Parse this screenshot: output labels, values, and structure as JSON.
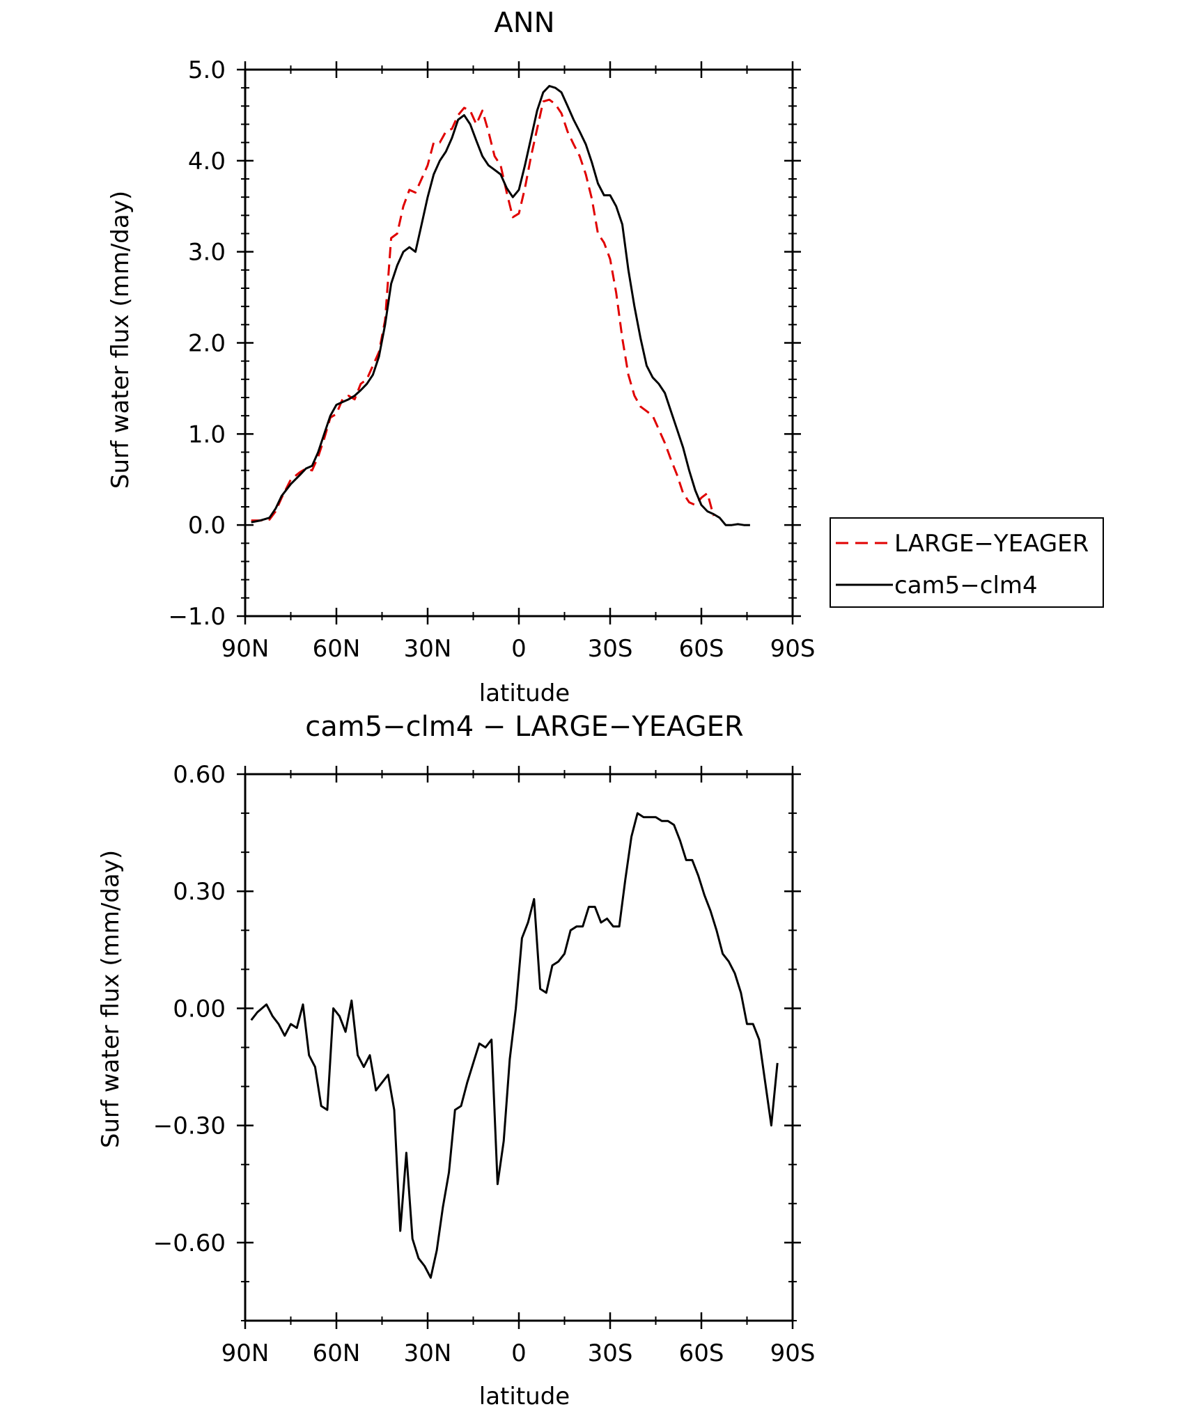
{
  "chart_data": [
    {
      "type": "line",
      "title": "ANN",
      "xlabel": "latitude",
      "ylabel": "Surf water flux (mm/day)",
      "xlim": [
        90,
        -90
      ],
      "ylim": [
        -1.0,
        5.0
      ],
      "x_ticks": [
        90,
        60,
        30,
        0,
        -30,
        -60,
        -90
      ],
      "x_tick_labels": [
        "90N",
        "60N",
        "30N",
        "0",
        "30S",
        "60S",
        "90S"
      ],
      "y_ticks": [
        -1.0,
        0.0,
        1.0,
        2.0,
        3.0,
        4.0,
        5.0
      ],
      "y_tick_labels": [
        "−1.0",
        "0.0",
        "1.0",
        "2.0",
        "3.0",
        "4.0",
        "5.0"
      ],
      "legend_position": "right",
      "series": [
        {
          "name": "LARGE−YEAGER",
          "color": "#e00000",
          "dash": "dashed",
          "points": [
            [
              88,
              0.05
            ],
            [
              85,
              0.05
            ],
            [
              82,
              0.06
            ],
            [
              80,
              0.15
            ],
            [
              78,
              0.3
            ],
            [
              75,
              0.5
            ],
            [
              72,
              0.58
            ],
            [
              70,
              0.62
            ],
            [
              68,
              0.6
            ],
            [
              66,
              0.75
            ],
            [
              64,
              0.95
            ],
            [
              62,
              1.18
            ],
            [
              60,
              1.22
            ],
            [
              58,
              1.38
            ],
            [
              56,
              1.42
            ],
            [
              54,
              1.38
            ],
            [
              52,
              1.55
            ],
            [
              50,
              1.6
            ],
            [
              48,
              1.75
            ],
            [
              46,
              1.9
            ],
            [
              44,
              2.25
            ],
            [
              42,
              3.15
            ],
            [
              40,
              3.2
            ],
            [
              38,
              3.5
            ],
            [
              36,
              3.68
            ],
            [
              34,
              3.65
            ],
            [
              32,
              3.8
            ],
            [
              30,
              3.95
            ],
            [
              28,
              4.2
            ],
            [
              26,
              4.2
            ],
            [
              24,
              4.32
            ],
            [
              22,
              4.35
            ],
            [
              20,
              4.5
            ],
            [
              18,
              4.58
            ],
            [
              16,
              4.55
            ],
            [
              14,
              4.4
            ],
            [
              12,
              4.55
            ],
            [
              10,
              4.32
            ],
            [
              8,
              4.05
            ],
            [
              6,
              3.95
            ],
            [
              4,
              3.65
            ],
            [
              2,
              3.38
            ],
            [
              0,
              3.42
            ],
            [
              -2,
              3.7
            ],
            [
              -4,
              4.05
            ],
            [
              -6,
              4.35
            ],
            [
              -8,
              4.65
            ],
            [
              -10,
              4.67
            ],
            [
              -12,
              4.62
            ],
            [
              -14,
              4.52
            ],
            [
              -16,
              4.32
            ],
            [
              -18,
              4.18
            ],
            [
              -20,
              4.05
            ],
            [
              -22,
              3.85
            ],
            [
              -24,
              3.58
            ],
            [
              -26,
              3.2
            ],
            [
              -28,
              3.1
            ],
            [
              -30,
              2.92
            ],
            [
              -32,
              2.55
            ],
            [
              -34,
              2.05
            ],
            [
              -36,
              1.65
            ],
            [
              -38,
              1.42
            ],
            [
              -40,
              1.3
            ],
            [
              -42,
              1.25
            ],
            [
              -44,
              1.2
            ],
            [
              -46,
              1.05
            ],
            [
              -48,
              0.9
            ],
            [
              -50,
              0.72
            ],
            [
              -52,
              0.55
            ],
            [
              -54,
              0.35
            ],
            [
              -56,
              0.25
            ],
            [
              -58,
              0.22
            ],
            [
              -60,
              0.3
            ],
            [
              -62,
              0.35
            ],
            [
              -64,
              0.1
            ]
          ]
        },
        {
          "name": "cam5−clm4",
          "color": "#000000",
          "dash": "solid",
          "points": [
            [
              88,
              0.03
            ],
            [
              85,
              0.05
            ],
            [
              82,
              0.08
            ],
            [
              80,
              0.18
            ],
            [
              78,
              0.32
            ],
            [
              75,
              0.45
            ],
            [
              72,
              0.55
            ],
            [
              70,
              0.62
            ],
            [
              68,
              0.65
            ],
            [
              66,
              0.8
            ],
            [
              64,
              1.0
            ],
            [
              62,
              1.2
            ],
            [
              60,
              1.32
            ],
            [
              58,
              1.35
            ],
            [
              56,
              1.38
            ],
            [
              54,
              1.42
            ],
            [
              52,
              1.48
            ],
            [
              50,
              1.55
            ],
            [
              48,
              1.65
            ],
            [
              46,
              1.85
            ],
            [
              44,
              2.2
            ],
            [
              42,
              2.65
            ],
            [
              40,
              2.85
            ],
            [
              38,
              3.0
            ],
            [
              36,
              3.05
            ],
            [
              34,
              3.0
            ],
            [
              32,
              3.3
            ],
            [
              30,
              3.6
            ],
            [
              28,
              3.85
            ],
            [
              26,
              4.0
            ],
            [
              24,
              4.1
            ],
            [
              22,
              4.25
            ],
            [
              20,
              4.45
            ],
            [
              18,
              4.5
            ],
            [
              16,
              4.4
            ],
            [
              14,
              4.22
            ],
            [
              12,
              4.05
            ],
            [
              10,
              3.95
            ],
            [
              8,
              3.9
            ],
            [
              6,
              3.85
            ],
            [
              4,
              3.7
            ],
            [
              2,
              3.6
            ],
            [
              0,
              3.68
            ],
            [
              -2,
              3.95
            ],
            [
              -4,
              4.25
            ],
            [
              -6,
              4.55
            ],
            [
              -8,
              4.75
            ],
            [
              -10,
              4.82
            ],
            [
              -12,
              4.8
            ],
            [
              -14,
              4.75
            ],
            [
              -16,
              4.6
            ],
            [
              -18,
              4.45
            ],
            [
              -20,
              4.32
            ],
            [
              -22,
              4.18
            ],
            [
              -24,
              3.98
            ],
            [
              -26,
              3.75
            ],
            [
              -28,
              3.62
            ],
            [
              -30,
              3.62
            ],
            [
              -32,
              3.5
            ],
            [
              -34,
              3.3
            ],
            [
              -36,
              2.8
            ],
            [
              -38,
              2.4
            ],
            [
              -40,
              2.05
            ],
            [
              -42,
              1.75
            ],
            [
              -44,
              1.62
            ],
            [
              -46,
              1.55
            ],
            [
              -48,
              1.45
            ],
            [
              -50,
              1.25
            ],
            [
              -52,
              1.05
            ],
            [
              -54,
              0.85
            ],
            [
              -56,
              0.6
            ],
            [
              -58,
              0.38
            ],
            [
              -60,
              0.22
            ],
            [
              -62,
              0.15
            ],
            [
              -64,
              0.12
            ],
            [
              -66,
              0.08
            ],
            [
              -68,
              0.0
            ],
            [
              -70,
              0.0
            ],
            [
              -72,
              0.01
            ],
            [
              -74,
              0.0
            ],
            [
              -76,
              0.0
            ]
          ]
        }
      ]
    },
    {
      "type": "line",
      "title": "cam5−clm4 − LARGE−YEAGER",
      "xlabel": "latitude",
      "ylabel": "Surf water flux (mm/day)",
      "xlim": [
        90,
        -90
      ],
      "ylim": [
        -0.8,
        0.6
      ],
      "x_ticks": [
        90,
        60,
        30,
        0,
        -30,
        -60,
        -90
      ],
      "x_tick_labels": [
        "90N",
        "60N",
        "30N",
        "0",
        "30S",
        "60S",
        "90S"
      ],
      "y_ticks": [
        -0.6,
        -0.3,
        0.0,
        0.3,
        0.6
      ],
      "y_tick_labels": [
        "−0.60",
        "−0.30",
        "0.00",
        "0.30",
        "0.60"
      ],
      "series": [
        {
          "color": "#000000",
          "dash": "solid",
          "points": [
            [
              88,
              -0.03
            ],
            [
              86,
              -0.01
            ],
            [
              83,
              0.01
            ],
            [
              81,
              -0.02
            ],
            [
              79,
              -0.04
            ],
            [
              77,
              -0.07
            ],
            [
              75,
              -0.04
            ],
            [
              73,
              -0.05
            ],
            [
              71,
              0.01
            ],
            [
              69,
              -0.12
            ],
            [
              67,
              -0.15
            ],
            [
              65,
              -0.25
            ],
            [
              63,
              -0.26
            ],
            [
              61,
              0.0
            ],
            [
              59,
              -0.02
            ],
            [
              57,
              -0.06
            ],
            [
              55,
              0.02
            ],
            [
              53,
              -0.12
            ],
            [
              51,
              -0.15
            ],
            [
              49,
              -0.12
            ],
            [
              47,
              -0.21
            ],
            [
              45,
              -0.19
            ],
            [
              43,
              -0.17
            ],
            [
              41,
              -0.26
            ],
            [
              39,
              -0.57
            ],
            [
              37,
              -0.37
            ],
            [
              35,
              -0.59
            ],
            [
              33,
              -0.64
            ],
            [
              31,
              -0.66
            ],
            [
              29,
              -0.69
            ],
            [
              27,
              -0.62
            ],
            [
              25,
              -0.51
            ],
            [
              23,
              -0.42
            ],
            [
              21,
              -0.26
            ],
            [
              19,
              -0.25
            ],
            [
              17,
              -0.19
            ],
            [
              15,
              -0.14
            ],
            [
              13,
              -0.09
            ],
            [
              11,
              -0.1
            ],
            [
              9,
              -0.08
            ],
            [
              7,
              -0.45
            ],
            [
              5,
              -0.34
            ],
            [
              3,
              -0.13
            ],
            [
              1,
              0.0
            ],
            [
              -1,
              0.18
            ],
            [
              -3,
              0.22
            ],
            [
              -5,
              0.28
            ],
            [
              -7,
              0.05
            ],
            [
              -9,
              0.04
            ],
            [
              -11,
              0.11
            ],
            [
              -13,
              0.12
            ],
            [
              -15,
              0.14
            ],
            [
              -17,
              0.2
            ],
            [
              -19,
              0.21
            ],
            [
              -21,
              0.21
            ],
            [
              -23,
              0.26
            ],
            [
              -25,
              0.26
            ],
            [
              -27,
              0.22
            ],
            [
              -29,
              0.23
            ],
            [
              -31,
              0.21
            ],
            [
              -33,
              0.21
            ],
            [
              -35,
              0.33
            ],
            [
              -37,
              0.44
            ],
            [
              -39,
              0.5
            ],
            [
              -41,
              0.49
            ],
            [
              -43,
              0.49
            ],
            [
              -45,
              0.49
            ],
            [
              -47,
              0.48
            ],
            [
              -49,
              0.48
            ],
            [
              -51,
              0.47
            ],
            [
              -53,
              0.43
            ],
            [
              -55,
              0.38
            ],
            [
              -57,
              0.38
            ],
            [
              -59,
              0.34
            ],
            [
              -61,
              0.29
            ],
            [
              -63,
              0.25
            ],
            [
              -65,
              0.2
            ],
            [
              -67,
              0.14
            ],
            [
              -69,
              0.12
            ],
            [
              -71,
              0.09
            ],
            [
              -73,
              0.04
            ],
            [
              -75,
              -0.04
            ],
            [
              -77,
              -0.04
            ],
            [
              -79,
              -0.08
            ],
            [
              -81,
              -0.19
            ],
            [
              -83,
              -0.3
            ],
            [
              -85,
              -0.14
            ]
          ]
        }
      ]
    }
  ]
}
